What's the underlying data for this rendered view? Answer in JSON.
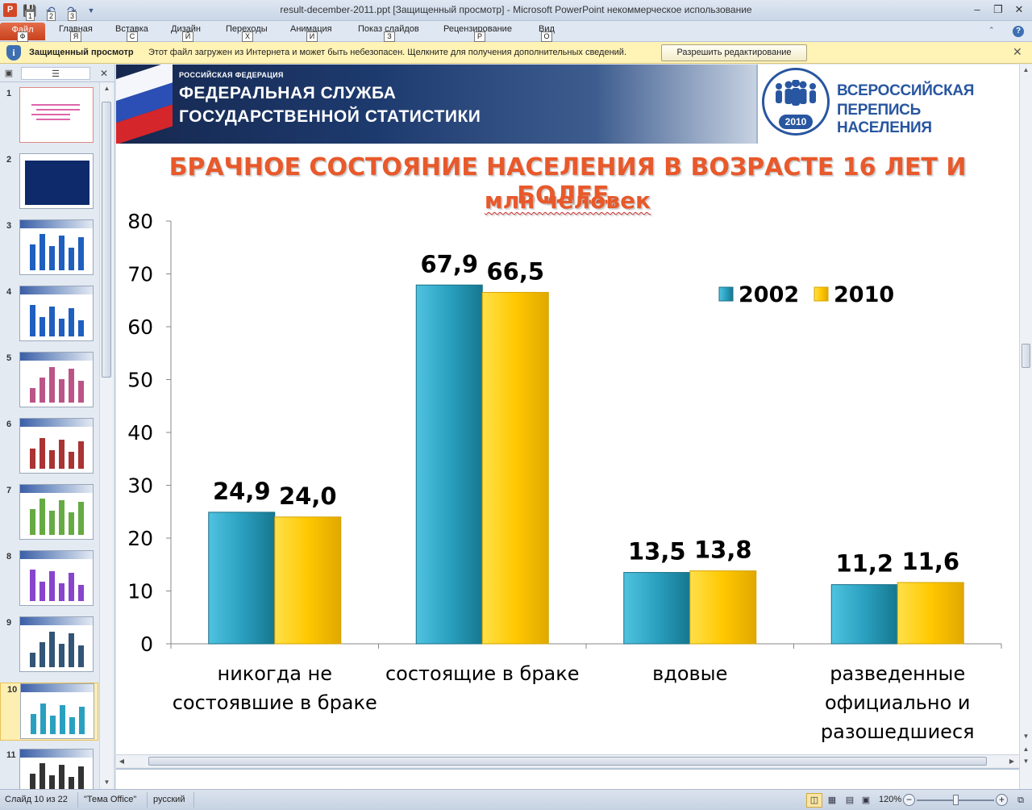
{
  "window": {
    "title": "result-december-2011.ppt [Защищенный просмотр]  -  Microsoft PowerPoint некоммерческое использование",
    "app_icon": "P",
    "qat_keys": [
      "1",
      "2",
      "3"
    ]
  },
  "ribbon": {
    "file_label": "Файл",
    "tabs": [
      {
        "label": "Главная",
        "key": "Я"
      },
      {
        "label": "Вставка",
        "key": "С"
      },
      {
        "label": "Дизайн",
        "key": "Й"
      },
      {
        "label": "Переходы",
        "key": "Х"
      },
      {
        "label": "Анимация",
        "key": "И"
      },
      {
        "label": "Показ слайдов",
        "key": "З"
      },
      {
        "label": "Рецензирование",
        "key": "Р"
      },
      {
        "label": "Вид",
        "key": "О"
      }
    ],
    "file_key": "Ф"
  },
  "message_bar": {
    "title": "Защищенный просмотр",
    "text": "Этот файл загружен из Интернета и может быть небезопасен. Щелкните для получения дополнительных сведений.",
    "button": "Разрешить редактирование",
    "icon": "shield-info-icon"
  },
  "slides_panel": {
    "numbers": [
      "1",
      "2",
      "3",
      "4",
      "5",
      "6",
      "7",
      "8",
      "9",
      "10",
      "11"
    ],
    "selected": "10"
  },
  "slide": {
    "banner": {
      "small": "РОССИЙСКАЯ ФЕДЕРАЦИЯ",
      "line1": "ФЕДЕРАЛЬНАЯ СЛУЖБА",
      "line2": "ГОСУДАРСТВЕННОЙ СТАТИСТИКИ",
      "census1": "ВСЕРОССИЙСКАЯ",
      "census2": "ПЕРЕПИСЬ НАСЕЛЕНИЯ",
      "year": "2010"
    },
    "title_line1": "БРАЧНОЕ СОСТОЯНИЕ НАСЕЛЕНИЯ В ВОЗРАСТЕ 16 ЛЕТ И БОЛЕЕ,",
    "title_line2": "млн человек"
  },
  "chart_data": {
    "type": "bar",
    "categories": [
      [
        "никогда не",
        "состоявшие в браке"
      ],
      [
        "состоящие в браке"
      ],
      [
        "вдовые"
      ],
      [
        "разведенные",
        "официально и",
        "разошедшиеся"
      ]
    ],
    "series": [
      {
        "name": "2002",
        "values": [
          24.9,
          67.9,
          13.5,
          11.2
        ],
        "labels": [
          "24,9",
          "67,9",
          "13,5",
          "11,2"
        ],
        "color": "#2aa0c0"
      },
      {
        "name": "2010",
        "values": [
          24.0,
          66.5,
          13.8,
          11.6
        ],
        "labels": [
          "24,0",
          "66,5",
          "13,8",
          "11,6"
        ],
        "color": "#ffc800"
      }
    ],
    "yticks": [
      "0",
      "10",
      "20",
      "30",
      "40",
      "50",
      "60",
      "70",
      "80"
    ],
    "ylim": [
      0,
      80
    ],
    "legend_position": "top-right"
  },
  "statusbar": {
    "slide_info": "Слайд 10 из 22",
    "theme": "\"Тема Office\"",
    "language": "русский",
    "zoom": "120%"
  }
}
